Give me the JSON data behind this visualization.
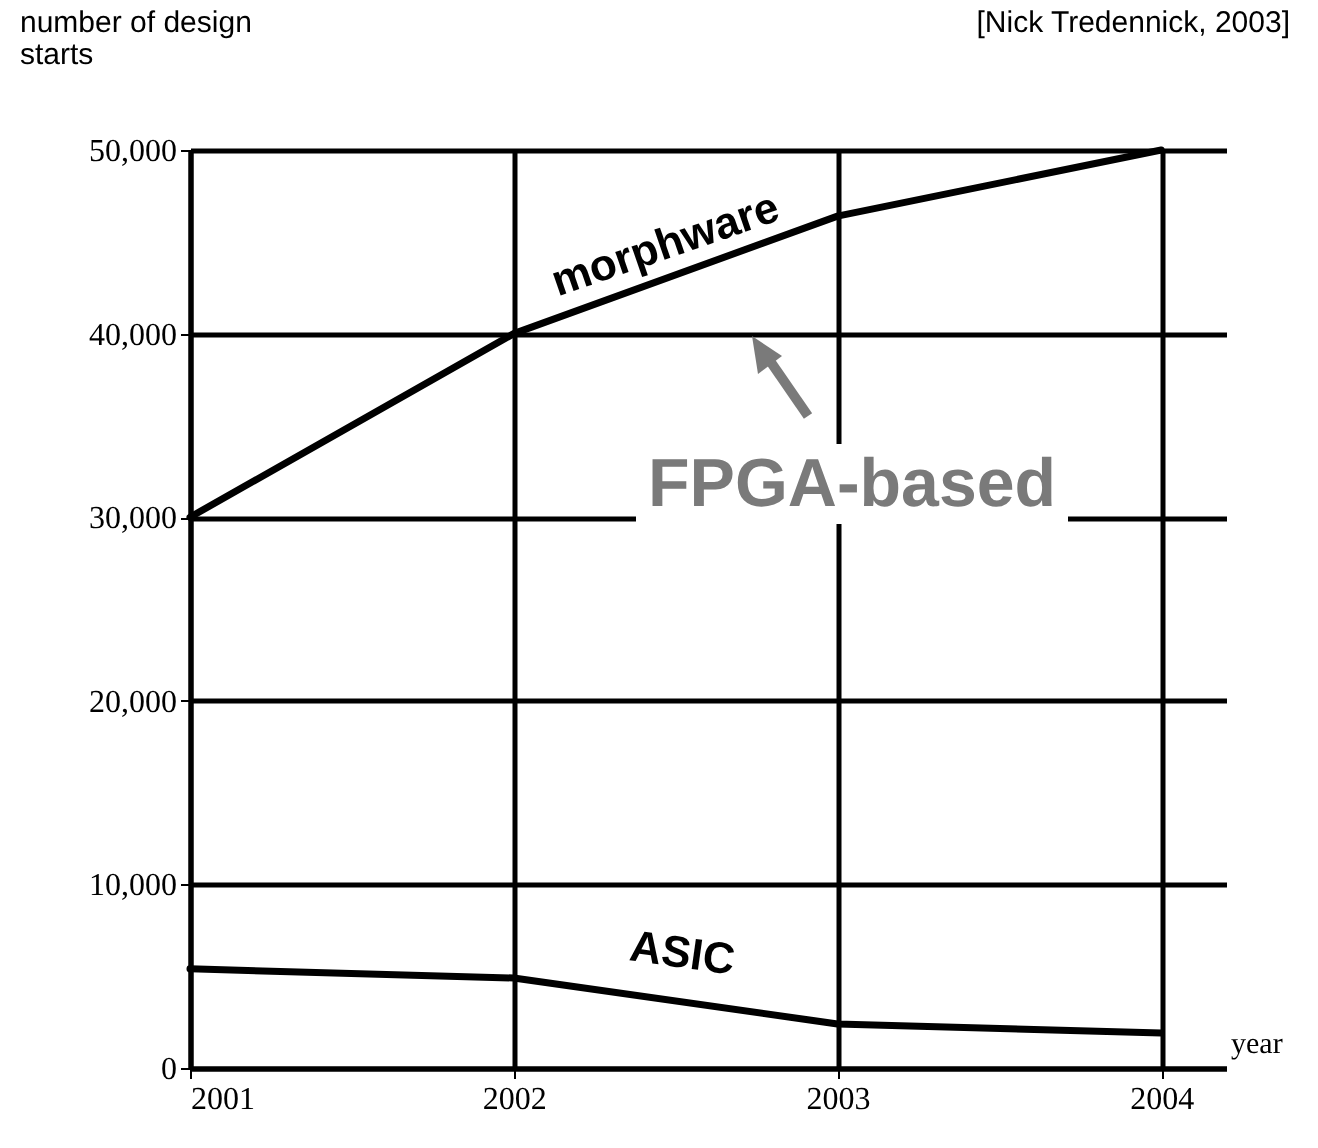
{
  "chart_data": {
    "type": "line",
    "ylabel": "number of design starts",
    "xlabel": "year",
    "annotations": [
      "[Nick Tredennick, 2003]",
      "FPGA-based"
    ],
    "x": [
      2001,
      2002,
      2003,
      2004
    ],
    "series": [
      {
        "name": "morphware",
        "color": "#000000",
        "values": [
          30000,
          40000,
          46400,
          50000
        ]
      },
      {
        "name": "ASIC",
        "color": "#000000",
        "values": [
          5400,
          4900,
          2400,
          1900
        ]
      }
    ],
    "xlim": [
      2001,
      2004.2
    ],
    "xticks": [
      2001,
      2002,
      2003,
      2004
    ],
    "ylim": [
      0,
      50000
    ],
    "yticks": [
      {
        "value": 0,
        "label": "0"
      },
      {
        "value": 10000,
        "label": "10,000"
      },
      {
        "value": 20000,
        "label": "20,000"
      },
      {
        "value": 30000,
        "label": "30,000"
      },
      {
        "value": 40000,
        "label": "40,000"
      },
      {
        "value": 50000,
        "label": "50,000"
      }
    ],
    "grid": true,
    "legend": false,
    "marker": "none",
    "line_style": "solid"
  }
}
